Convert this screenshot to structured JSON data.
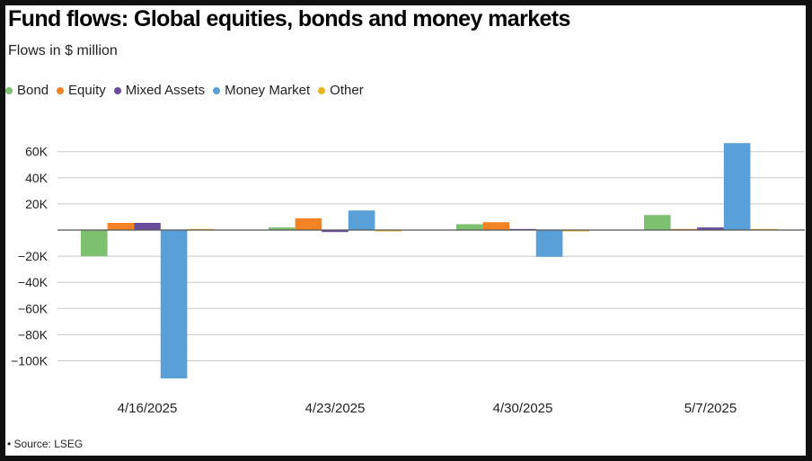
{
  "title": "Fund flows: Global equities, bonds and money markets",
  "subtitle": "Flows in $ million",
  "source": "• Source: LSEG",
  "chart_data": {
    "type": "bar",
    "categories": [
      "4/16/2025",
      "4/23/2025",
      "4/30/2025",
      "5/7/2025"
    ],
    "series": [
      {
        "name": "Bond",
        "color": "#7dc06f",
        "values": [
          -20000,
          2000,
          4500,
          11500
        ]
      },
      {
        "name": "Equity",
        "color": "#f28224",
        "values": [
          5500,
          9000,
          6000,
          500
        ]
      },
      {
        "name": "Mixed Assets",
        "color": "#6a4c9c",
        "values": [
          5500,
          -1500,
          500,
          2000
        ]
      },
      {
        "name": "Money Market",
        "color": "#5aa0d8",
        "values": [
          -113500,
          15000,
          -20500,
          66500
        ]
      },
      {
        "name": "Other",
        "color": "#e8b422",
        "values": [
          0,
          -1000,
          -1000,
          0
        ]
      }
    ],
    "yticks": [
      60000,
      40000,
      20000,
      -20000,
      -40000,
      -60000,
      -80000,
      -100000
    ],
    "ytick_labels": [
      "60K",
      "40K",
      "20K",
      "−20K",
      "−40K",
      "−60K",
      "−80K",
      "−100K"
    ],
    "ylim": [
      -115000,
      65000
    ],
    "xlabel": "",
    "ylabel": "",
    "grid": true,
    "legend_position": "top-left"
  }
}
